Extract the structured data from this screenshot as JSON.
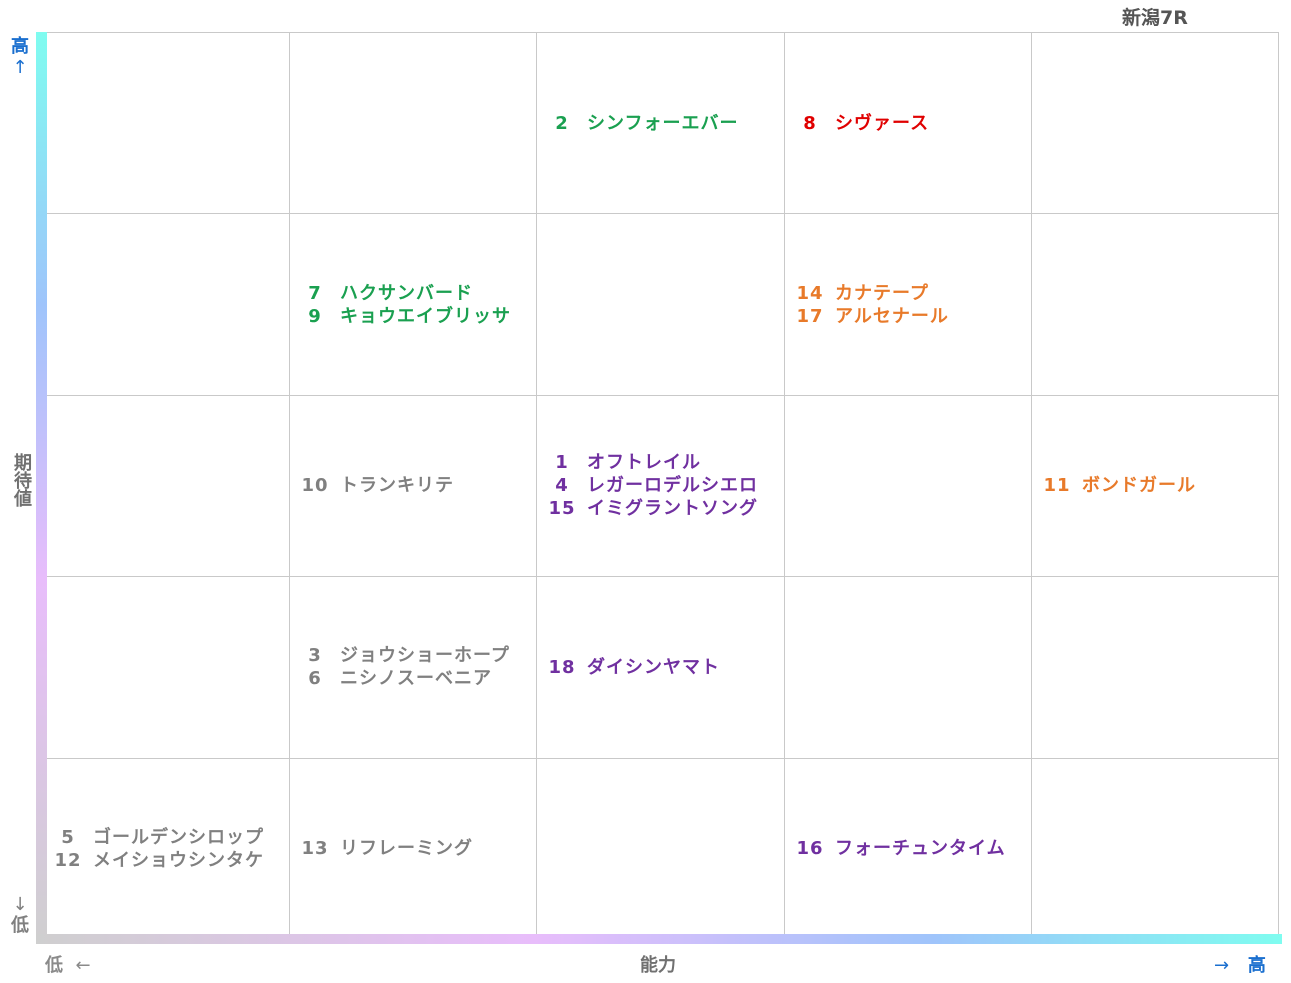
{
  "title": "新潟7R",
  "axes": {
    "y_high": "高",
    "y_high_arrow": "↑",
    "y_label": "期待値",
    "y_low_arrow": "↓",
    "y_low": "低",
    "x_low": "低",
    "x_low_arrow": "←",
    "x_label": "能力",
    "x_high_arrow": "→",
    "x_high": "高"
  },
  "colors": {
    "green": "#1aa050",
    "red": "#e00000",
    "orange": "#e87a2a",
    "gray": "#808080",
    "purple": "#7030a0",
    "axis_high": "#1a6fcf"
  },
  "grid": {
    "rows": 5,
    "cols": 5,
    "cells": [
      [
        [],
        [],
        [
          {
            "num": "2",
            "name": "シンフォーエバー",
            "color": "green"
          }
        ],
        [
          {
            "num": "8",
            "name": "シヴァース",
            "color": "red"
          }
        ],
        []
      ],
      [
        [],
        [
          {
            "num": "7",
            "name": "ハクサンバード",
            "color": "green"
          },
          {
            "num": "9",
            "name": "キョウエイブリッサ",
            "color": "green"
          }
        ],
        [],
        [
          {
            "num": "14",
            "name": "カナテープ",
            "color": "orange"
          },
          {
            "num": "17",
            "name": "アルセナール",
            "color": "orange"
          }
        ],
        []
      ],
      [
        [],
        [
          {
            "num": "10",
            "name": "トランキリテ",
            "color": "gray"
          }
        ],
        [
          {
            "num": "1",
            "name": "オフトレイル",
            "color": "purple"
          },
          {
            "num": "4",
            "name": "レガーロデルシエロ",
            "color": "purple"
          },
          {
            "num": "15",
            "name": "イミグラントソング",
            "color": "purple"
          }
        ],
        [],
        [
          {
            "num": "11",
            "name": "ボンドガール",
            "color": "orange"
          }
        ]
      ],
      [
        [],
        [
          {
            "num": "3",
            "name": "ジョウショーホープ",
            "color": "gray"
          },
          {
            "num": "6",
            "name": "ニシノスーベニア",
            "color": "gray"
          }
        ],
        [
          {
            "num": "18",
            "name": "ダイシンヤマト",
            "color": "purple"
          }
        ],
        [],
        []
      ],
      [
        [
          {
            "num": "5",
            "name": "ゴールデンシロップ",
            "color": "gray"
          },
          {
            "num": "12",
            "name": "メイショウシンタケ",
            "color": "gray"
          }
        ],
        [
          {
            "num": "13",
            "name": "リフレーミング",
            "color": "gray"
          }
        ],
        [],
        [
          {
            "num": "16",
            "name": "フォーチュンタイム",
            "color": "purple"
          }
        ],
        []
      ]
    ]
  }
}
